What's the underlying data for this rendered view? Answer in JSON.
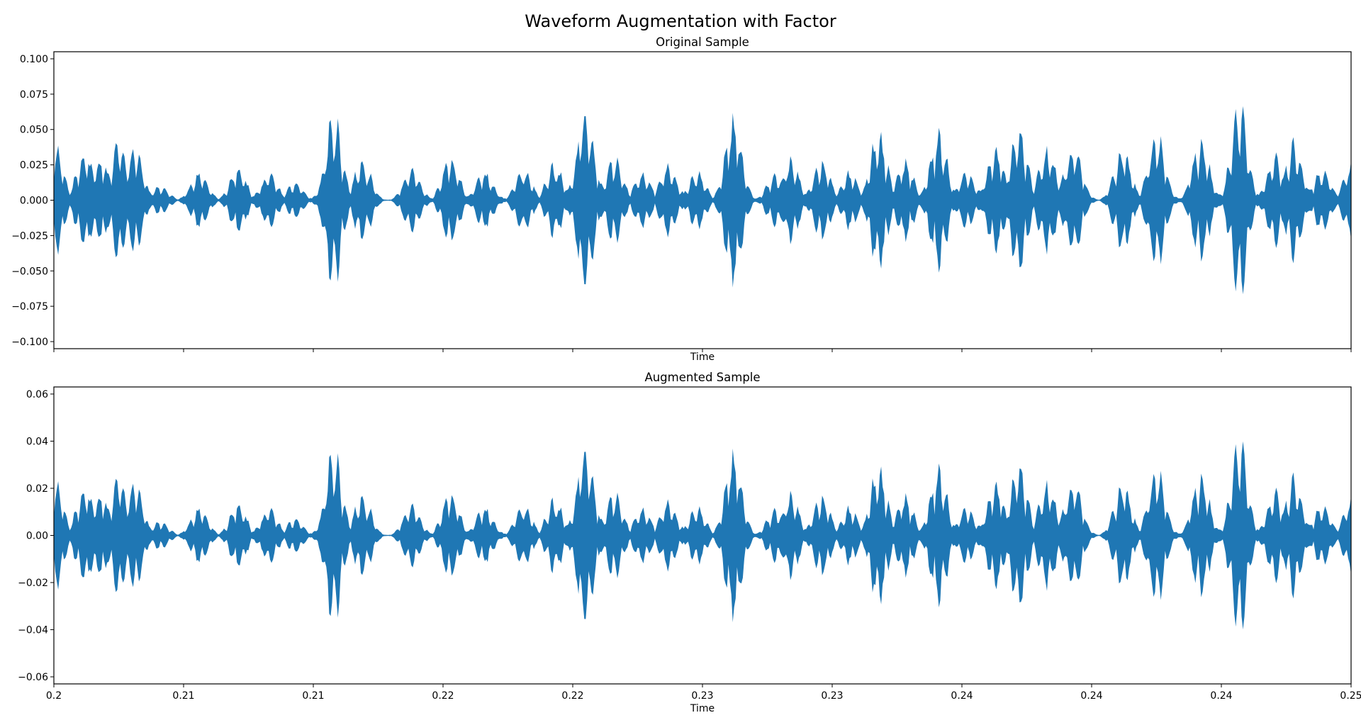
{
  "figure": {
    "title": "Waveform Augmentation with Factor"
  },
  "colors": {
    "waveform": "#1f77b4",
    "axes": "#000000",
    "background": "#ffffff"
  },
  "chart_data": [
    {
      "type": "area",
      "title": "Original Sample",
      "xlabel": "Time",
      "ylabel": "",
      "xlim": [
        0.2,
        0.25
      ],
      "ylim": [
        -0.105,
        0.105
      ],
      "yticks": [
        -0.1,
        -0.075,
        -0.05,
        -0.025,
        0.0,
        0.025,
        0.05,
        0.075,
        0.1
      ],
      "ytick_labels": [
        "−0.100",
        "−0.075",
        "−0.050",
        "−0.025",
        "0.000",
        "0.025",
        "0.050",
        "0.075",
        "0.100"
      ],
      "xticks": [
        0.2,
        0.205,
        0.21,
        0.215,
        0.22,
        0.225,
        0.23,
        0.235,
        0.24,
        0.245,
        0.25
      ],
      "xtick_labels": [],
      "grid": false,
      "series": [
        {
          "x": [
            0.2,
            0.2012,
            0.2018,
            0.2025,
            0.2031,
            0.2041,
            0.2056,
            0.2071,
            0.2083,
            0.2093,
            0.2108,
            0.2119,
            0.2138,
            0.2153,
            0.2166,
            0.2181,
            0.2193,
            0.2205,
            0.2216,
            0.2227,
            0.2237,
            0.2248,
            0.2262,
            0.2278,
            0.2284,
            0.2296,
            0.2307,
            0.2318,
            0.2328,
            0.2341,
            0.2352,
            0.2363,
            0.2372,
            0.2383,
            0.2393,
            0.2412,
            0.2425,
            0.2442,
            0.2457,
            0.2471,
            0.2478,
            0.2489,
            0.25
          ],
          "envelope": [
            0.042,
            0.035,
            0.03,
            0.042,
            0.038,
            0.01,
            0.02,
            0.022,
            0.018,
            0.012,
            0.058,
            0.028,
            0.022,
            0.03,
            0.02,
            0.022,
            0.025,
            0.067,
            0.03,
            0.02,
            0.024,
            0.02,
            0.057,
            0.018,
            0.028,
            0.028,
            0.02,
            0.048,
            0.028,
            0.047,
            0.02,
            0.038,
            0.05,
            0.036,
            0.038,
            0.036,
            0.048,
            0.043,
            0.065,
            0.03,
            0.04,
            0.022,
            0.025
          ]
        }
      ]
    },
    {
      "type": "area",
      "title": "Augmented Sample",
      "xlabel": "Time",
      "ylabel": "",
      "xlim": [
        0.2,
        0.25
      ],
      "ylim": [
        -0.063,
        0.063
      ],
      "yticks": [
        -0.06,
        -0.04,
        -0.02,
        0.0,
        0.02,
        0.04,
        0.06
      ],
      "ytick_labels": [
        "−0.06",
        "−0.04",
        "−0.02",
        "0.00",
        "0.02",
        "0.04",
        "0.06"
      ],
      "xticks": [
        0.2,
        0.205,
        0.21,
        0.215,
        0.22,
        0.225,
        0.23,
        0.235,
        0.24,
        0.245,
        0.25
      ],
      "xtick_labels": [
        "0.2",
        "0.21",
        "0.21",
        "0.22",
        "0.22",
        "0.23",
        "0.23",
        "0.24",
        "0.24",
        "0.24",
        "0.25"
      ],
      "grid": false,
      "series": [
        {
          "x": [
            0.2,
            0.2012,
            0.2018,
            0.2025,
            0.2031,
            0.2041,
            0.2056,
            0.2071,
            0.2083,
            0.2093,
            0.2108,
            0.2119,
            0.2138,
            0.2153,
            0.2166,
            0.2181,
            0.2193,
            0.2205,
            0.2216,
            0.2227,
            0.2237,
            0.2248,
            0.2262,
            0.2278,
            0.2284,
            0.2296,
            0.2307,
            0.2318,
            0.2328,
            0.2341,
            0.2352,
            0.2363,
            0.2372,
            0.2383,
            0.2393,
            0.2412,
            0.2425,
            0.2442,
            0.2457,
            0.2471,
            0.2478,
            0.2489,
            0.25
          ],
          "envelope": [
            0.025,
            0.021,
            0.018,
            0.025,
            0.023,
            0.006,
            0.012,
            0.013,
            0.011,
            0.007,
            0.035,
            0.017,
            0.013,
            0.018,
            0.012,
            0.013,
            0.015,
            0.04,
            0.018,
            0.012,
            0.014,
            0.012,
            0.034,
            0.011,
            0.017,
            0.017,
            0.012,
            0.029,
            0.017,
            0.028,
            0.012,
            0.023,
            0.03,
            0.022,
            0.023,
            0.022,
            0.029,
            0.026,
            0.039,
            0.018,
            0.024,
            0.013,
            0.015
          ]
        }
      ]
    }
  ]
}
